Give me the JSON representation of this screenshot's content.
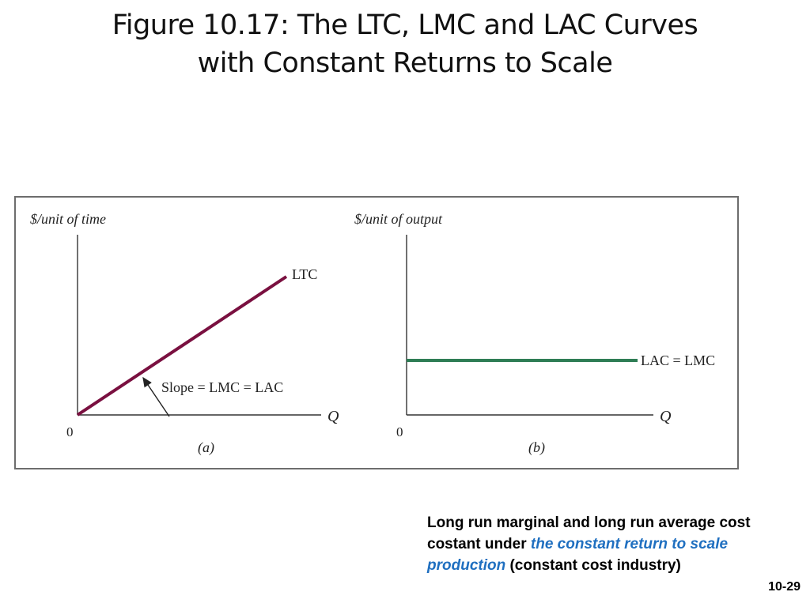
{
  "slide": {
    "title_line1": "Figure 10.17: The LTC, LMC and LAC Curves",
    "title_line2": "with Constant Returns to Scale",
    "slide_number": "10-29"
  },
  "panel_a": {
    "y_axis_label": "$/unit of time",
    "x_axis_label": "Q",
    "origin_label": "0",
    "curve_label": "LTC",
    "annotation": "Slope = LMC = LAC",
    "panel_label": "(a)",
    "curve_color": "#7a1040"
  },
  "panel_b": {
    "y_axis_label": "$/unit of output",
    "x_axis_label": "Q",
    "origin_label": "0",
    "curve_label": "LAC = LMC",
    "panel_label": "(b)",
    "curve_color": "#2e7d55"
  },
  "caption": {
    "text_before": "Long run marginal and long run average cost costant under ",
    "text_emphasis": "the constant return to scale production",
    "text_after": " (constant cost industry)",
    "emphasis_color": "#1f6fc0"
  }
}
